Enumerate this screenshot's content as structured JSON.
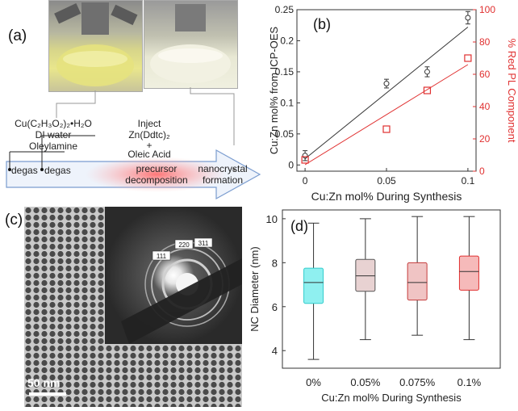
{
  "panel_a": {
    "label": "(a)",
    "reagents_line1": "Cu(C₂H₃O₂)₂•H₂O",
    "reagents_line2": "DI water",
    "reagents_line3": "Oleylamine",
    "inject_line1": "Inject",
    "inject_line2": "Zn(Ddtc)₂",
    "inject_line3": "+",
    "inject_line4": "Oleic Acid",
    "step1": "degas",
    "step2": "degas",
    "step3": "precursor decomposition",
    "step4": "nanocrystal formation"
  },
  "panel_c": {
    "label": "(c)",
    "scale_bar": "50 nm",
    "ring_labels": [
      "220",
      "311",
      "111"
    ]
  },
  "chart_data": [
    {
      "panel": "(b)",
      "type": "scatter",
      "xlabel": "Cu:Zn mol% During Synthesis",
      "ylabel_left": "Cu:Zn mol% from ICP-OES",
      "ylabel_right": "% Red PL Component",
      "xlim": [
        -0.005,
        0.105
      ],
      "ylim_left": [
        -0.01,
        0.25
      ],
      "ylim_right": [
        0,
        100
      ],
      "xticks": [
        "0",
        "0.05",
        "0.1"
      ],
      "yticks_left": [
        "0",
        "0.05",
        "0.1",
        "0.15",
        "0.2",
        "0.25"
      ],
      "yticks_right": [
        "0",
        "20",
        "40",
        "60",
        "80",
        "100"
      ],
      "series": [
        {
          "axis": "left",
          "color": "#333333",
          "marker": "circle",
          "x": [
            0,
            0.05,
            0.075,
            0.1
          ],
          "y": [
            0.015,
            0.131,
            0.15,
            0.237
          ],
          "err": [
            0.008,
            0.007,
            0.008,
            0.01
          ],
          "fit": [
            [
              0,
              0.01
            ],
            [
              0.1,
              0.222
            ]
          ]
        },
        {
          "axis": "right",
          "color": "#e03030",
          "marker": "square",
          "x": [
            0,
            0.05,
            0.075,
            0.1
          ],
          "y": [
            7,
            26,
            50,
            70
          ],
          "fit": [
            [
              0,
              4
            ],
            [
              0.1,
              66
            ]
          ]
        }
      ]
    },
    {
      "panel": "(d)",
      "type": "box",
      "xlabel": "Cu:Zn mol% During Synthesis",
      "ylabel": "NC Diameter (nm)",
      "ylim": [
        3.2,
        10.4
      ],
      "yticks": [
        "4",
        "6",
        "8",
        "10"
      ],
      "categories": [
        "0%",
        "0.05%",
        "0.075%",
        "0.1%"
      ],
      "boxes": [
        {
          "whisker_low": 3.6,
          "q1": 6.15,
          "median": 7.1,
          "q3": 7.75,
          "whisker_high": 9.8,
          "fill": "#8ff0f0",
          "stroke": "#33cccc"
        },
        {
          "whisker_low": 4.5,
          "q1": 6.7,
          "median": 7.4,
          "q3": 8.15,
          "whisker_high": 10.0,
          "fill": "#e8d2d2",
          "stroke": "#555555"
        },
        {
          "whisker_low": 4.7,
          "q1": 6.3,
          "median": 7.1,
          "q3": 8.0,
          "whisker_high": 10.1,
          "fill": "#f0c4c4",
          "stroke": "#c43c3c"
        },
        {
          "whisker_low": 4.5,
          "q1": 6.75,
          "median": 7.6,
          "q3": 8.3,
          "whisker_high": 10.1,
          "fill": "#f6baba",
          "stroke": "#e03030"
        }
      ]
    }
  ],
  "panel_b_label": "(b)",
  "panel_d_label": "(d)"
}
